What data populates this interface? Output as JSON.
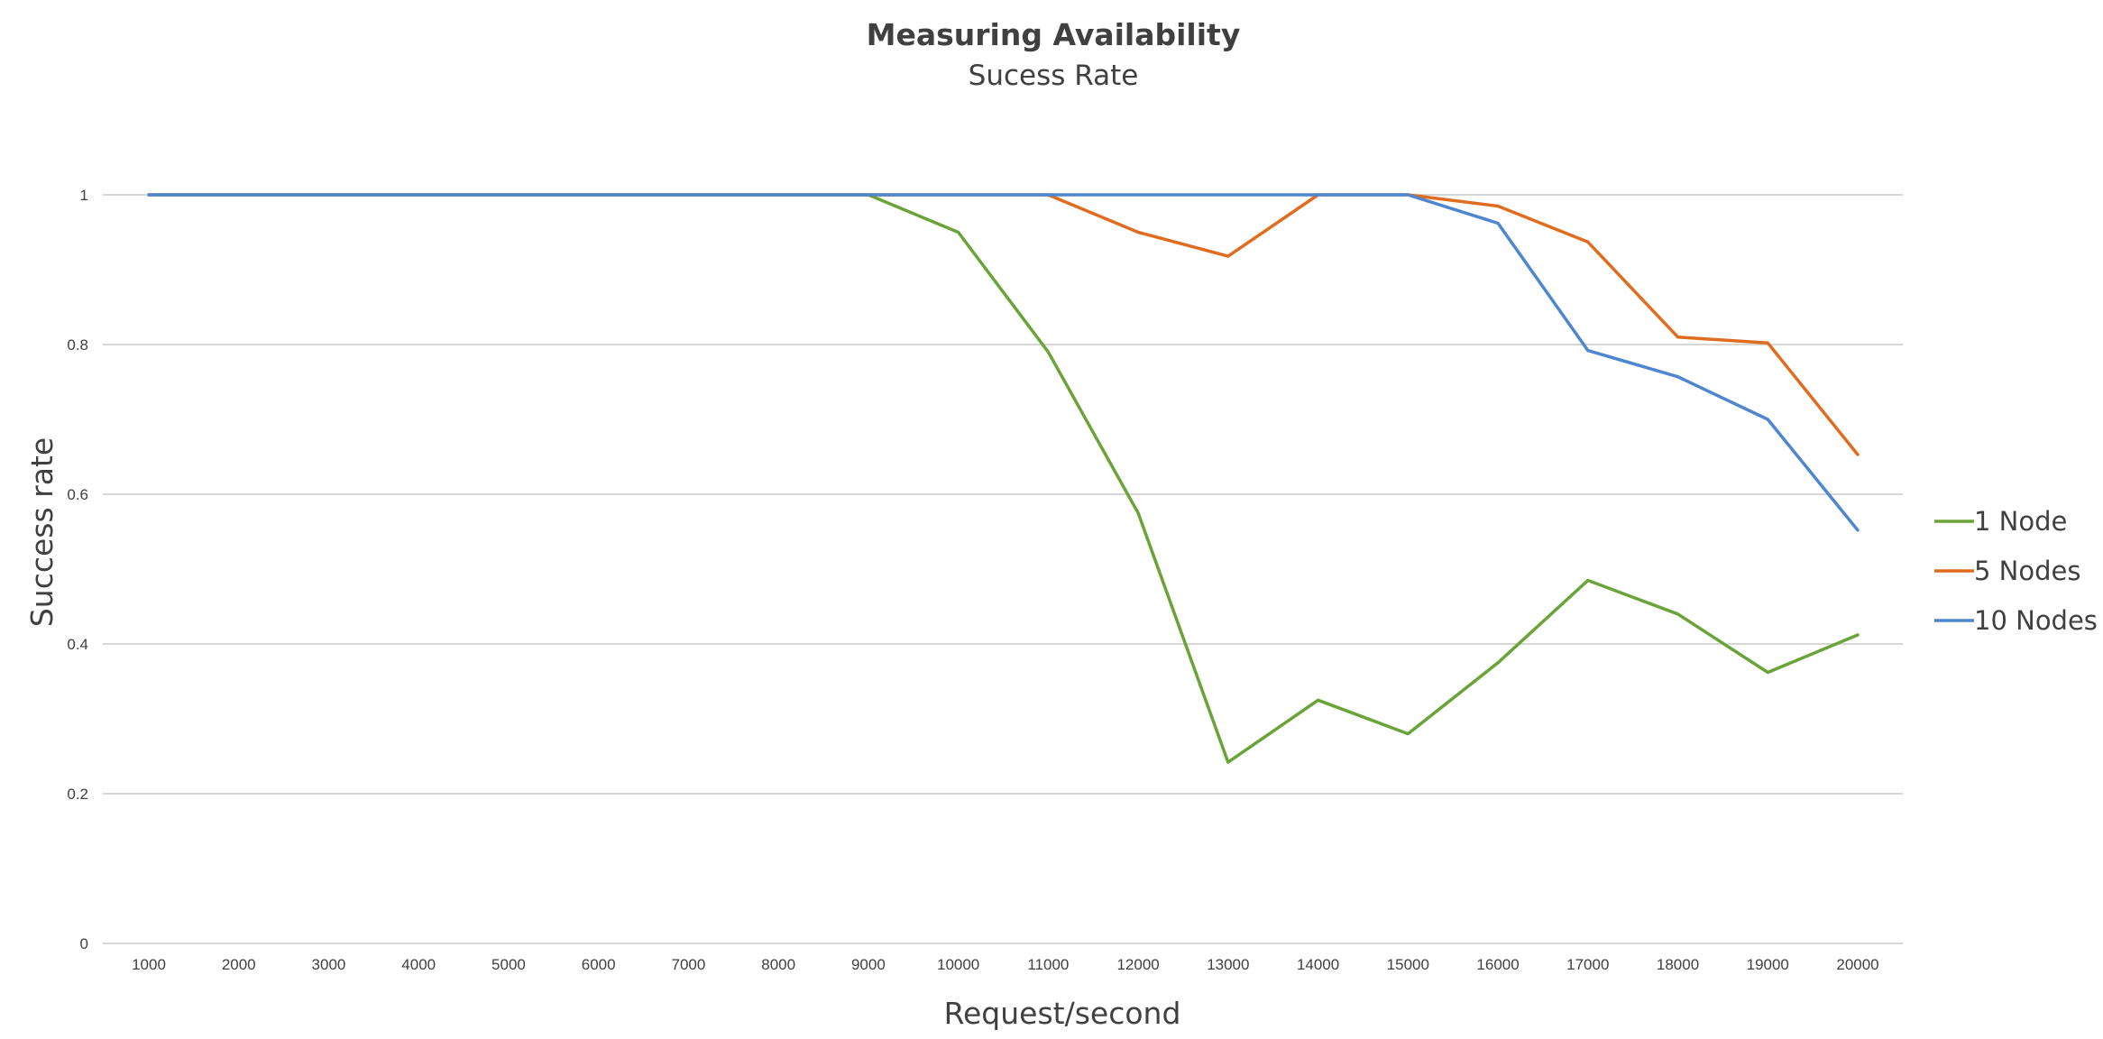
{
  "chart_data": {
    "type": "line",
    "title": "Measuring Availability",
    "subtitle": "Sucess Rate",
    "xlabel": "Request/second",
    "ylabel": "Success rate",
    "categories": [
      "1000",
      "2000",
      "3000",
      "4000",
      "5000",
      "6000",
      "7000",
      "8000",
      "9000",
      "10000",
      "11000",
      "12000",
      "13000",
      "14000",
      "15000",
      "16000",
      "17000",
      "18000",
      "19000",
      "20000"
    ],
    "yticks": [
      "0",
      "0.2",
      "0.4",
      "0.6",
      "0.8",
      "1"
    ],
    "ylim": [
      0,
      1
    ],
    "grid": true,
    "legend_position": "right",
    "series": [
      {
        "name": "1 Node",
        "color": "#6aa338",
        "values": [
          1,
          1,
          1,
          1,
          1,
          1,
          1,
          1,
          1,
          0.95,
          0.79,
          0.575,
          0.242,
          0.325,
          0.28,
          0.375,
          0.485,
          0.44,
          0.362,
          0.412
        ]
      },
      {
        "name": "5 Nodes",
        "color": "#e06c1f",
        "values": [
          1,
          1,
          1,
          1,
          1,
          1,
          1,
          1,
          1,
          1,
          1,
          0.95,
          0.918,
          1,
          1,
          0.985,
          0.937,
          0.81,
          0.802,
          0.653
        ]
      },
      {
        "name": "10 Nodes",
        "color": "#4f86d0",
        "values": [
          1,
          1,
          1,
          1,
          1,
          1,
          1,
          1,
          1,
          1,
          1,
          1,
          1,
          1,
          1,
          0.962,
          0.792,
          0.757,
          0.7,
          0.552
        ]
      }
    ]
  }
}
